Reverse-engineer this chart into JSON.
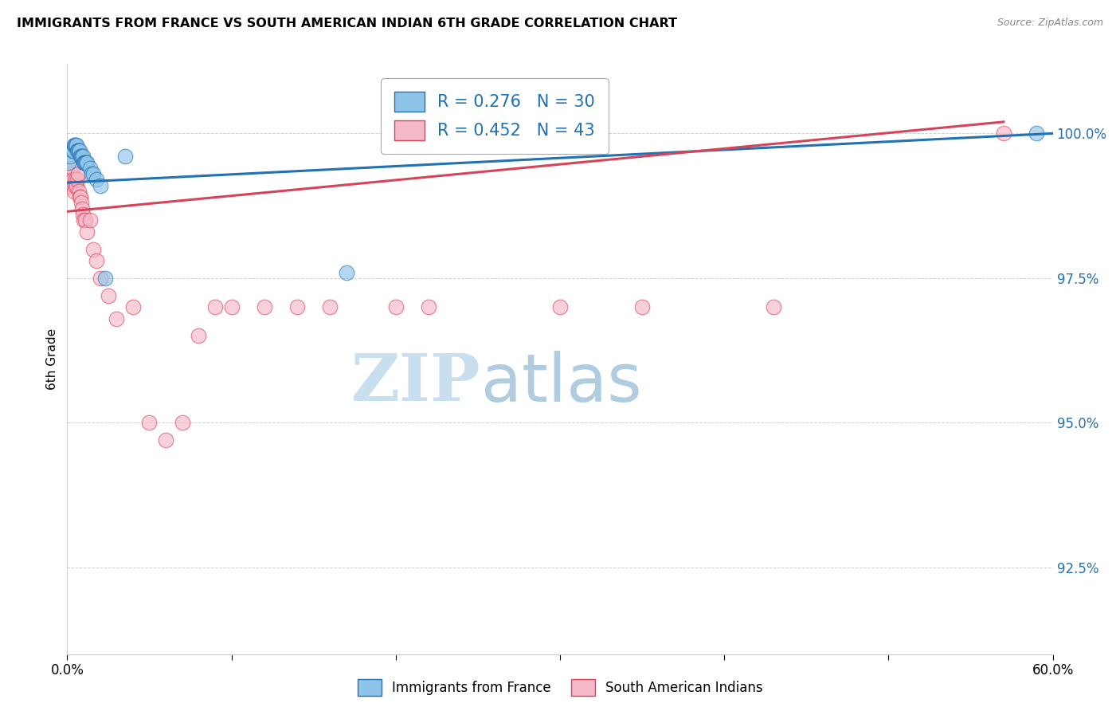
{
  "title": "IMMIGRANTS FROM FRANCE VS SOUTH AMERICAN INDIAN 6TH GRADE CORRELATION CHART",
  "source": "Source: ZipAtlas.com",
  "ylabel": "6th Grade",
  "ytick_values": [
    92.5,
    95.0,
    97.5,
    100.0
  ],
  "xlim": [
    0.0,
    60.0
  ],
  "ylim": [
    91.0,
    101.2
  ],
  "legend1_r": "0.276",
  "legend1_n": "30",
  "legend2_r": "0.452",
  "legend2_n": "43",
  "blue_color": "#8ec4e8",
  "pink_color": "#f5b8c8",
  "blue_line_color": "#2171b5",
  "pink_line_color": "#d6445a",
  "watermark_zip": "ZIP",
  "watermark_atlas": "atlas",
  "blue_scatter_x": [
    0.1,
    0.2,
    0.3,
    0.35,
    0.4,
    0.45,
    0.5,
    0.55,
    0.6,
    0.65,
    0.7,
    0.75,
    0.8,
    0.85,
    0.9,
    0.95,
    1.0,
    1.05,
    1.1,
    1.15,
    1.2,
    1.4,
    1.5,
    1.6,
    1.8,
    2.0,
    2.3,
    3.5,
    17.0,
    59.0
  ],
  "blue_scatter_y": [
    99.5,
    99.6,
    99.7,
    99.7,
    99.8,
    99.8,
    99.8,
    99.8,
    99.7,
    99.7,
    99.7,
    99.7,
    99.6,
    99.6,
    99.6,
    99.6,
    99.5,
    99.5,
    99.5,
    99.5,
    99.5,
    99.4,
    99.3,
    99.3,
    99.2,
    99.1,
    97.5,
    99.6,
    97.6,
    100.0
  ],
  "pink_scatter_x": [
    0.1,
    0.15,
    0.2,
    0.25,
    0.3,
    0.35,
    0.4,
    0.45,
    0.5,
    0.55,
    0.6,
    0.65,
    0.7,
    0.75,
    0.8,
    0.85,
    0.9,
    0.95,
    1.0,
    1.1,
    1.2,
    1.4,
    1.6,
    1.8,
    2.0,
    2.5,
    3.0,
    4.0,
    5.0,
    6.0,
    7.0,
    8.0,
    9.0,
    10.0,
    12.0,
    14.0,
    16.0,
    20.0,
    22.0,
    30.0,
    35.0,
    43.0,
    57.0
  ],
  "pink_scatter_y": [
    99.3,
    99.2,
    99.1,
    99.3,
    99.4,
    99.2,
    99.0,
    99.1,
    99.2,
    99.1,
    99.2,
    99.3,
    99.0,
    98.9,
    98.9,
    98.8,
    98.7,
    98.6,
    98.5,
    98.5,
    98.3,
    98.5,
    98.0,
    97.8,
    97.5,
    97.2,
    96.8,
    97.0,
    95.0,
    94.7,
    95.0,
    96.5,
    97.0,
    97.0,
    97.0,
    97.0,
    97.0,
    97.0,
    97.0,
    97.0,
    97.0,
    97.0,
    100.0
  ],
  "blue_trendline_x": [
    0.0,
    60.0
  ],
  "blue_trendline_y": [
    99.15,
    100.0
  ],
  "pink_trendline_x": [
    0.0,
    57.0
  ],
  "pink_trendline_y": [
    98.65,
    100.2
  ]
}
